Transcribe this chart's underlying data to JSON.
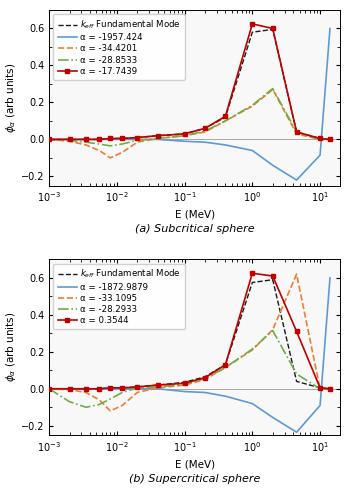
{
  "subcritical": {
    "title": "(a) Subcritical sphere",
    "legend_entries": [
      {
        "label": "α = -1957.424",
        "color": "#5b9bd5",
        "linestyle": "-",
        "marker": null,
        "lw": 1.2
      },
      {
        "label": "α = -34.4201",
        "color": "#ed7d31",
        "linestyle": "--",
        "marker": null,
        "lw": 1.2
      },
      {
        "label": "α = -28.8533",
        "color": "#70ad47",
        "linestyle": "-.",
        "marker": null,
        "lw": 1.2
      },
      {
        "label": "α = -17.7439",
        "color": "#c00000",
        "linestyle": "-",
        "marker": "s",
        "lw": 1.2
      },
      {
        "label": "$k_{eff}$ Fundamental Mode",
        "color": "#1a1a1a",
        "linestyle": "--",
        "marker": null,
        "lw": 1.0
      }
    ],
    "energy": [
      0.001,
      0.002,
      0.0035,
      0.0055,
      0.008,
      0.012,
      0.02,
      0.04,
      0.1,
      0.2,
      0.4,
      1.0,
      2.0,
      4.5,
      10.0,
      14.0
    ],
    "curves": {
      "alpha1": [
        0.0,
        0.0,
        0.0,
        0.0,
        0.0,
        0.0,
        0.0,
        0.0,
        -0.01,
        -0.015,
        -0.03,
        -0.06,
        -0.14,
        -0.22,
        -0.085,
        0.6
      ],
      "alpha2": [
        0.0,
        -0.01,
        -0.03,
        -0.06,
        -0.1,
        -0.07,
        -0.015,
        0.005,
        0.02,
        0.04,
        0.1,
        0.18,
        0.27,
        0.03,
        0.0,
        0.0
      ],
      "alpha3": [
        0.0,
        -0.005,
        -0.015,
        -0.025,
        -0.035,
        -0.025,
        -0.005,
        0.005,
        0.02,
        0.045,
        0.1,
        0.185,
        0.275,
        0.04,
        0.0,
        0.0
      ],
      "alpha4": [
        0.0,
        0.0,
        0.0,
        0.0,
        0.005,
        0.005,
        0.01,
        0.02,
        0.03,
        0.06,
        0.125,
        0.625,
        0.6,
        0.04,
        0.005,
        0.0
      ],
      "keff": [
        0.0,
        0.0,
        0.0,
        0.0,
        0.005,
        0.005,
        0.01,
        0.02,
        0.03,
        0.06,
        0.12,
        0.58,
        0.595,
        0.04,
        0.005,
        0.0
      ]
    }
  },
  "supercritical": {
    "title": "(b) Supercritical sphere",
    "legend_entries": [
      {
        "label": "α = -1872.9879",
        "color": "#5b9bd5",
        "linestyle": "-",
        "marker": null,
        "lw": 1.2
      },
      {
        "label": "α = -33.1095",
        "color": "#ed7d31",
        "linestyle": "--",
        "marker": null,
        "lw": 1.2
      },
      {
        "label": "α = -28.2933",
        "color": "#70ad47",
        "linestyle": "-.",
        "marker": null,
        "lw": 1.2
      },
      {
        "label": "α = 0.3544",
        "color": "#c00000",
        "linestyle": "-",
        "marker": "s",
        "lw": 1.2
      },
      {
        "label": "$k_{eff}$ Fundamental Mode",
        "color": "#1a1a1a",
        "linestyle": "--",
        "marker": null,
        "lw": 1.0
      }
    ],
    "energy": [
      0.001,
      0.002,
      0.0035,
      0.0055,
      0.008,
      0.012,
      0.02,
      0.04,
      0.1,
      0.2,
      0.4,
      1.0,
      2.0,
      4.5,
      10.0,
      14.0
    ],
    "curves": {
      "alpha1": [
        0.0,
        0.0,
        0.0,
        0.0,
        0.0,
        0.0,
        0.0,
        0.0,
        -0.015,
        -0.02,
        -0.04,
        -0.08,
        -0.155,
        -0.235,
        -0.09,
        0.6
      ],
      "alpha2": [
        0.0,
        -0.005,
        -0.02,
        -0.06,
        -0.12,
        -0.09,
        -0.02,
        0.005,
        0.02,
        0.05,
        0.115,
        0.21,
        0.32,
        0.62,
        0.0,
        0.0
      ],
      "alpha3": [
        0.0,
        -0.07,
        -0.1,
        -0.085,
        -0.055,
        -0.02,
        0.005,
        0.01,
        0.025,
        0.055,
        0.115,
        0.215,
        0.315,
        0.08,
        0.0,
        0.0
      ],
      "alpha4": [
        0.0,
        0.0,
        0.0,
        0.0,
        0.005,
        0.005,
        0.01,
        0.02,
        0.03,
        0.06,
        0.13,
        0.625,
        0.61,
        0.31,
        0.005,
        0.0
      ],
      "keff": [
        0.0,
        0.0,
        0.0,
        0.0,
        0.005,
        0.005,
        0.01,
        0.02,
        0.035,
        0.065,
        0.13,
        0.575,
        0.59,
        0.04,
        0.005,
        0.0
      ]
    }
  },
  "ylabel": "$\\phi_\\alpha$ (arb units)",
  "xlabel": "E (MeV)",
  "ylim": [
    -0.25,
    0.7
  ],
  "xlim": [
    0.001,
    20.0
  ],
  "marker_indices_sub": [
    0,
    1,
    2,
    3,
    4,
    5,
    6,
    7,
    8,
    9,
    10,
    11,
    12,
    13,
    14,
    15
  ],
  "bg_color": "#f8f8f8"
}
